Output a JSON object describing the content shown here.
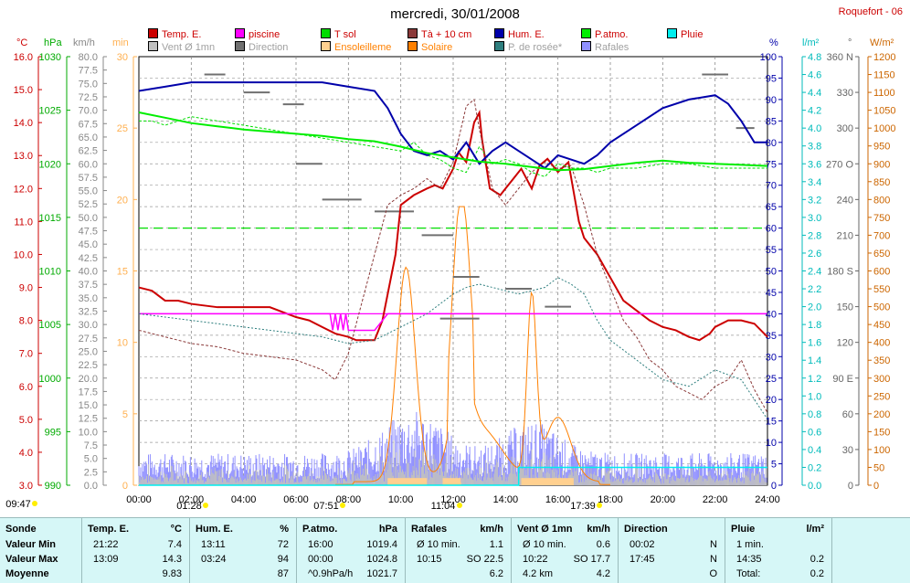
{
  "title": "mercredi, 30/01/2008",
  "station": "Roquefort - 06",
  "legend": [
    {
      "label": "Temp. E.",
      "color": "#cc0000"
    },
    {
      "label": "piscine",
      "color": "#ff00ff"
    },
    {
      "label": "T sol",
      "color": "#00dd00"
    },
    {
      "label": "Tà + 10 cm",
      "color": "#8b3a3a"
    },
    {
      "label": "Hum. E.",
      "color": "#0000aa"
    },
    {
      "label": "P.atmo.",
      "color": "#00ee00"
    },
    {
      "label": "Pluie",
      "color": "#00eeee"
    },
    {
      "label": "Vent Ø 1mn",
      "color": "#c0c0c0"
    },
    {
      "label": "Direction",
      "color": "#707070"
    },
    {
      "label": "Ensoleilleme",
      "color": "#ffd090"
    },
    {
      "label": "Solaire",
      "color": "#ff8000"
    },
    {
      "label": "P. de rosée*",
      "color": "#2f7f7f"
    },
    {
      "label": "Rafales",
      "color": "#9090ff"
    }
  ],
  "axis_units": {
    "temp": "°C",
    "hpa": "hPa",
    "kmh": "km/h",
    "min": "min",
    "pct": "%",
    "lm2": "l/m²",
    "deg": "°",
    "wm2": "W/m²"
  },
  "chart_data": {
    "type": "line",
    "x_ticks": [
      "00:00",
      "02:00",
      "04:00",
      "06:00",
      "08:00",
      "10:00",
      "12:00",
      "14:00",
      "16:00",
      "18:00",
      "20:00",
      "22:00",
      "24:00"
    ],
    "event_times": [
      "09:47",
      "01:28",
      "07:51",
      "11:04",
      "17:39"
    ],
    "axes": {
      "temp": {
        "min": 3.0,
        "max": 16.0,
        "step": 1.0
      },
      "hpa": {
        "min": 990,
        "max": 1030,
        "step": 5
      },
      "kmh": {
        "min": 0.0,
        "max": 80.0,
        "step": 2.5
      },
      "min": {
        "min": 0,
        "max": 30,
        "step": 5
      },
      "pct": {
        "min": 0,
        "max": 100,
        "step": 5
      },
      "lm2": {
        "min": 0.0,
        "max": 4.8,
        "step": 0.2
      },
      "deg": {
        "min": 0,
        "max": 360,
        "step": 30,
        "labels": {
          "90": "90 E",
          "180": "180 S",
          "270": "270 O",
          "360": "360 N"
        }
      },
      "wm2": {
        "min": 0,
        "max": 1200,
        "step": 50
      }
    },
    "series": [
      {
        "name": "Temp. E.",
        "axis": "temp",
        "x": [
          0,
          0.5,
          1,
          1.5,
          2,
          3,
          4,
          5,
          6,
          6.5,
          7,
          7.5,
          8,
          8.3,
          8.8,
          9,
          9.3,
          9.8,
          10,
          10.5,
          11,
          11.3,
          11.6,
          12,
          12.2,
          12.5,
          12.8,
          13,
          13.1,
          13.4,
          13.8,
          14,
          14.3,
          14.6,
          15,
          15.3,
          15.6,
          16,
          16.4,
          16.8,
          17,
          17.5,
          18,
          18.5,
          19,
          19.5,
          20,
          20.5,
          21,
          21.4,
          21.8,
          22,
          22.5,
          23,
          23.5,
          24
        ],
        "y": [
          9.0,
          8.9,
          8.6,
          8.6,
          8.5,
          8.4,
          8.4,
          8.4,
          8.1,
          8.0,
          7.8,
          7.6,
          7.5,
          7.4,
          7.4,
          7.4,
          8.0,
          10.0,
          11.5,
          11.8,
          12.0,
          12.1,
          12.0,
          12.6,
          13.1,
          12.8,
          14.0,
          14.3,
          13.5,
          12.0,
          11.8,
          12.0,
          12.3,
          12.6,
          12.0,
          12.7,
          12.9,
          12.5,
          12.8,
          11.0,
          10.5,
          10.0,
          9.3,
          8.6,
          8.3,
          8.0,
          7.8,
          7.7,
          7.5,
          7.4,
          7.6,
          7.8,
          8.0,
          8.0,
          7.9,
          7.5
        ]
      },
      {
        "name": "piscine",
        "axis": "temp",
        "x": [
          0,
          7.3,
          7.4,
          7.5,
          7.6,
          7.7,
          7.8,
          7.9,
          8.0,
          8.8,
          9.0,
          9.5,
          24
        ],
        "y": [
          8.2,
          8.2,
          7.7,
          8.2,
          7.7,
          8.2,
          7.7,
          8.2,
          7.7,
          7.7,
          7.7,
          8.2,
          8.2
        ]
      },
      {
        "name": "T sol",
        "axis": "pct",
        "x": [
          0,
          0.5,
          1,
          2,
          3,
          4,
          5,
          6,
          7,
          8,
          9,
          10,
          10.5,
          11,
          11.5,
          12,
          12.5,
          13,
          13.5,
          14,
          14.5,
          15,
          15.5,
          16,
          16.5,
          17,
          17.5,
          18,
          19,
          20,
          21,
          22,
          23,
          24
        ],
        "y": [
          85,
          85,
          84,
          86,
          85,
          84,
          83,
          82,
          81,
          80,
          79,
          78,
          80,
          77,
          76,
          74,
          73,
          79,
          75,
          76,
          75,
          73,
          72,
          75,
          74,
          74,
          73,
          74,
          74,
          75,
          75,
          74,
          74,
          74
        ]
      },
      {
        "name": "Tà + 10 cm",
        "axis": "temp",
        "x": [
          0,
          1,
          2,
          3,
          4,
          5,
          6,
          7,
          7.5,
          8,
          8.5,
          9,
          9.5,
          10,
          10.5,
          11,
          11.5,
          12,
          12.5,
          12.8,
          13,
          13.5,
          14,
          14.5,
          15,
          15.5,
          16,
          16.5,
          17,
          17.5,
          18,
          18.5,
          19,
          19.5,
          20,
          20.5,
          21,
          21.5,
          22,
          22.5,
          23,
          23.5,
          24
        ],
        "y": [
          7.7,
          7.5,
          7.3,
          7.2,
          7.0,
          6.9,
          6.8,
          6.5,
          6.2,
          7.0,
          8.5,
          10.0,
          11.5,
          11.8,
          12.0,
          12.3,
          12.0,
          12.8,
          14.5,
          14.7,
          13.8,
          12.0,
          11.5,
          12.0,
          12.5,
          12.8,
          12.6,
          12.7,
          11.5,
          10.0,
          9.0,
          8.0,
          7.5,
          6.8,
          6.5,
          6.0,
          5.8,
          5.6,
          6.0,
          6.2,
          6.8,
          5.9,
          5.2
        ]
      },
      {
        "name": "Hum. E.",
        "axis": "pct",
        "x": [
          0,
          1,
          2,
          3,
          4,
          5,
          6,
          7,
          8,
          9,
          9.5,
          10,
          10.5,
          11,
          11.5,
          12,
          12.5,
          13,
          13.5,
          14,
          14.5,
          15,
          15.5,
          16,
          16.5,
          17,
          17.5,
          18,
          19,
          20,
          21,
          22,
          22.5,
          23,
          23.5,
          24
        ],
        "y": [
          92,
          93,
          94,
          94,
          94,
          94,
          94,
          94,
          93,
          92,
          88,
          82,
          78,
          77,
          78,
          76,
          80,
          75,
          78,
          80,
          78,
          76,
          74,
          77,
          76,
          75,
          77,
          80,
          84,
          88,
          90,
          91,
          89,
          85,
          80,
          80
        ]
      },
      {
        "name": "P. de rosée*",
        "axis": "temp",
        "x": [
          0,
          1,
          2,
          3,
          4,
          5,
          6,
          7,
          8,
          9,
          10,
          10.5,
          11,
          11.5,
          12,
          12.5,
          13,
          13.5,
          14,
          14.5,
          15,
          15.5,
          16,
          16.5,
          17,
          17.5,
          18,
          19,
          20,
          21,
          22,
          23,
          24
        ],
        "y": [
          8.2,
          8.1,
          8.0,
          7.9,
          7.8,
          7.7,
          7.6,
          7.5,
          7.3,
          7.4,
          7.8,
          8.0,
          8.2,
          8.5,
          8.8,
          9.0,
          9.1,
          9.0,
          8.9,
          8.8,
          8.9,
          9.0,
          9.3,
          9.1,
          8.8,
          8.0,
          7.4,
          6.8,
          6.2,
          6.0,
          6.5,
          6.2,
          5.0
        ]
      },
      {
        "name": "Pluie",
        "axis": "lm2",
        "x": [
          0,
          14.5,
          14.5,
          24
        ],
        "y": [
          0.0,
          0.0,
          0.2,
          0.2
        ]
      }
    ],
    "reference_lines": [
      {
        "axis": "temp",
        "value": 8.2,
        "color": "#ff00ff"
      },
      {
        "axis": "hpa",
        "value": 1014,
        "color": "#00dd00",
        "style": "dashed"
      }
    ]
  },
  "table": {
    "columns": [
      {
        "title": "Sonde",
        "unit": "",
        "rows": [
          [
            "Valeur Min",
            ""
          ],
          [
            "Valeur Max",
            ""
          ],
          [
            "Moyenne",
            ""
          ]
        ]
      },
      {
        "title": "Temp. E.",
        "unit": "°C",
        "rows": [
          [
            "21:22",
            "7.4"
          ],
          [
            "13:09",
            "14.3"
          ],
          [
            "",
            "9.83"
          ]
        ]
      },
      {
        "title": "Hum. E.",
        "unit": "%",
        "rows": [
          [
            "13:11",
            "72"
          ],
          [
            "03:24",
            "94"
          ],
          [
            "",
            "87"
          ]
        ]
      },
      {
        "title": "P.atmo.",
        "unit": "hPa",
        "rows": [
          [
            "16:00",
            "1019.4"
          ],
          [
            "00:00",
            "1024.8"
          ],
          [
            "^0.9hPa/h",
            "1021.7"
          ]
        ]
      },
      {
        "title": "Rafales",
        "unit": "km/h",
        "rows": [
          [
            "Ø 10 min.",
            "1.1"
          ],
          [
            "10:15",
            "SO 22.5"
          ],
          [
            "",
            "6.2"
          ]
        ]
      },
      {
        "title": "Vent Ø 1mn",
        "unit": "km/h",
        "rows": [
          [
            "Ø 10 min.",
            "0.6"
          ],
          [
            "10:22",
            "SO 17.7"
          ],
          [
            "4.2 km",
            "4.2"
          ]
        ]
      },
      {
        "title": "Direction",
        "unit": "",
        "rows": [
          [
            "00:02",
            "N"
          ],
          [
            "17:45",
            "N"
          ],
          [
            "",
            "O"
          ]
        ]
      },
      {
        "title": "Pluie",
        "unit": "l/m²",
        "rows": [
          [
            "1 min.",
            ""
          ],
          [
            "14:35",
            "0.2"
          ],
          [
            "Total:",
            "0.2"
          ]
        ]
      }
    ]
  }
}
